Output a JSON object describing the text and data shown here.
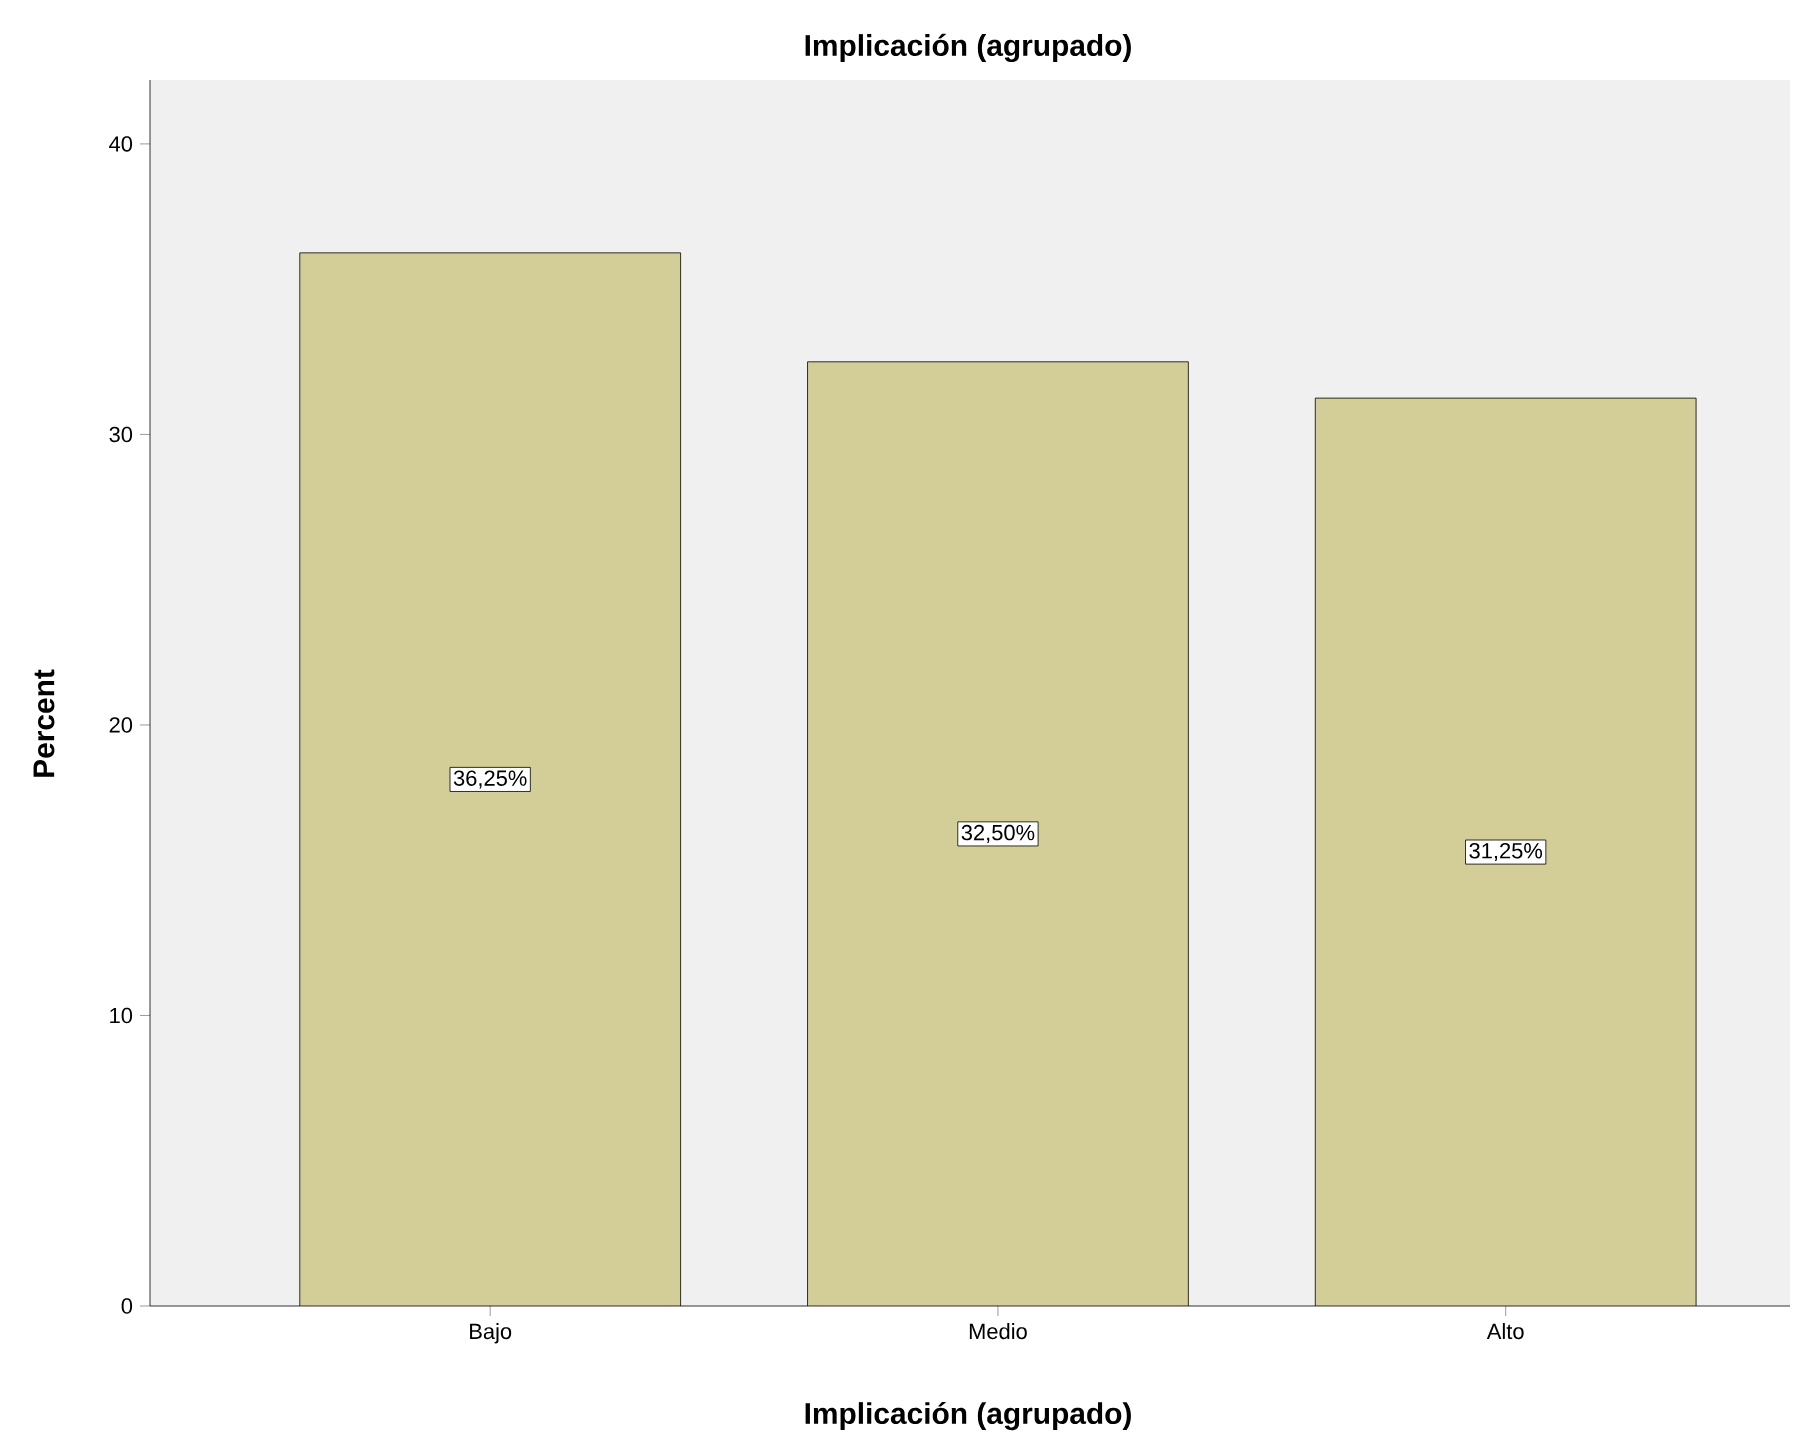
{
  "chart_data": {
    "type": "bar",
    "title": "Implicación (agrupado)",
    "xlabel": "Implicación (agrupado)",
    "ylabel": "Percent",
    "categories": [
      "Bajo",
      "Medio",
      "Alto"
    ],
    "values": [
      36.25,
      32.5,
      31.25
    ],
    "value_labels": [
      "36,25%",
      "32,50%",
      "31,25%"
    ],
    "color": "#d3ce97",
    "ylim": [
      0,
      42.2
    ],
    "yticks": [
      0,
      10,
      20,
      30,
      40
    ]
  }
}
